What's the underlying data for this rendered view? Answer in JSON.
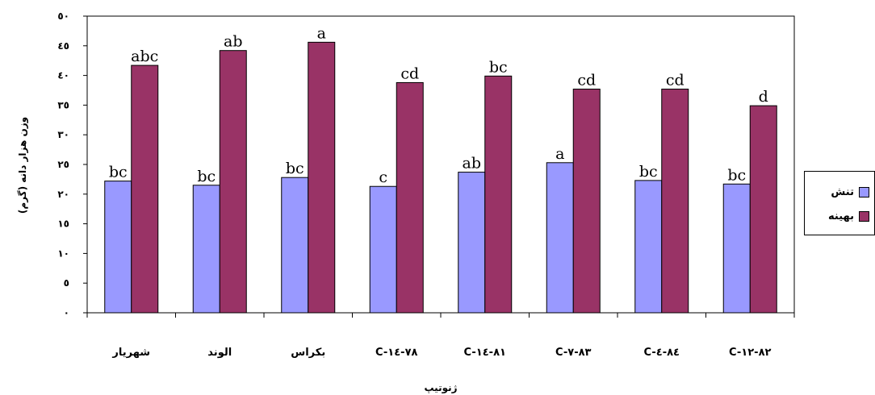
{
  "chart_data": {
    "type": "bar",
    "xlabel": "ژنوتیپ",
    "ylabel": "وزن هزار دانه (گرم)",
    "ylim": [
      0,
      50
    ],
    "yticks": [
      0,
      5,
      10,
      15,
      20,
      25,
      30,
      35,
      40,
      45,
      50
    ],
    "ytick_labels": [
      "٠",
      "٥",
      "١٠",
      "١٥",
      "٢٠",
      "٢٥",
      "٣٠",
      "٣٥",
      "٤٠",
      "٤٥",
      "٥٠"
    ],
    "categories": [
      "شهریار",
      "الوند",
      "بکراس",
      "C-٧٨-١٤",
      "C-٨١-١٤",
      "C-٨٣-٧",
      "C-٨٤-٤",
      "C-٨٢-١٢"
    ],
    "series": [
      {
        "name": "تنش",
        "color": "#9999ff",
        "values": [
          22.2,
          21.5,
          22.8,
          21.3,
          23.7,
          25.3,
          22.3,
          21.7
        ],
        "labels": [
          "bc",
          "bc",
          "bc",
          "c",
          "ab",
          "a",
          "bc",
          "bc"
        ]
      },
      {
        "name": "بهینه",
        "color": "#993366",
        "values": [
          41.7,
          44.2,
          45.6,
          38.8,
          39.9,
          37.7,
          37.7,
          34.9
        ],
        "labels": [
          "abc",
          "ab",
          "a",
          "cd",
          "bc",
          "cd",
          "cd",
          "d"
        ]
      }
    ],
    "legend_position": "right",
    "grid": false
  }
}
